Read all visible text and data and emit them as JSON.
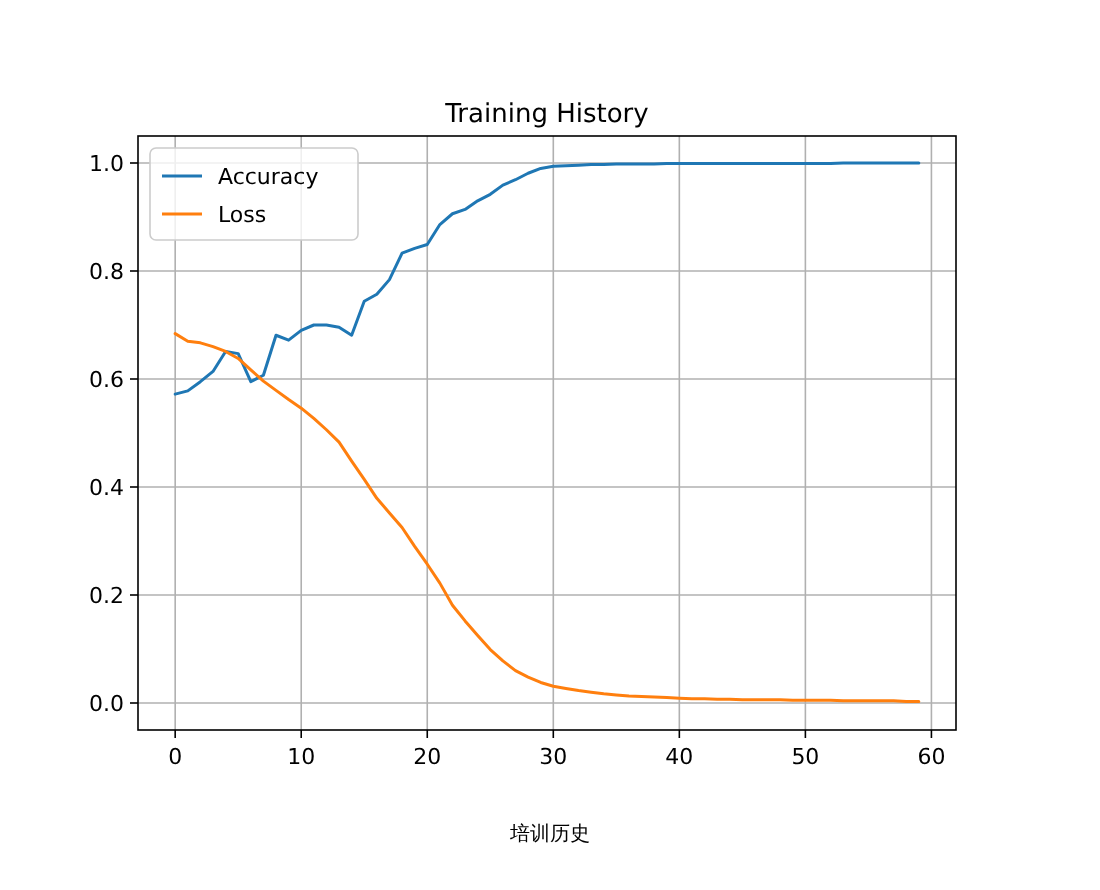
{
  "chart_data": {
    "type": "line",
    "title": "Training History",
    "x": [
      0,
      1,
      2,
      3,
      4,
      5,
      6,
      7,
      8,
      9,
      10,
      11,
      12,
      13,
      14,
      15,
      16,
      17,
      18,
      19,
      20,
      21,
      22,
      23,
      24,
      25,
      26,
      27,
      28,
      29,
      30,
      31,
      32,
      33,
      34,
      35,
      36,
      37,
      38,
      39,
      40,
      41,
      42,
      43,
      44,
      45,
      46,
      47,
      48,
      49,
      50,
      51,
      52,
      53,
      54,
      55,
      56,
      57,
      58,
      59
    ],
    "series": [
      {
        "name": "Accuracy",
        "color": "#1f77b4",
        "values": [
          0.572,
          0.578,
          0.595,
          0.614,
          0.651,
          0.647,
          0.595,
          0.607,
          0.681,
          0.672,
          0.69,
          0.7,
          0.7,
          0.696,
          0.681,
          0.744,
          0.757,
          0.784,
          0.833,
          0.842,
          0.849,
          0.886,
          0.906,
          0.914,
          0.93,
          0.942,
          0.959,
          0.969,
          0.981,
          0.99,
          0.994,
          0.995,
          0.996,
          0.997,
          0.997,
          0.998,
          0.998,
          0.998,
          0.998,
          0.999,
          0.999,
          0.999,
          0.999,
          0.999,
          0.999,
          0.999,
          0.999,
          0.999,
          0.999,
          0.999,
          0.999,
          0.999,
          0.999,
          1.0,
          1.0,
          1.0,
          1.0,
          1.0,
          1.0,
          1.0
        ]
      },
      {
        "name": "Loss",
        "color": "#ff7f0e",
        "values": [
          0.684,
          0.67,
          0.667,
          0.66,
          0.651,
          0.638,
          0.617,
          0.596,
          0.579,
          0.562,
          0.546,
          0.527,
          0.506,
          0.483,
          0.448,
          0.414,
          0.379,
          0.352,
          0.325,
          0.29,
          0.257,
          0.222,
          0.181,
          0.152,
          0.125,
          0.099,
          0.078,
          0.06,
          0.048,
          0.038,
          0.031,
          0.027,
          0.023,
          0.02,
          0.017,
          0.015,
          0.013,
          0.012,
          0.011,
          0.01,
          0.009,
          0.008,
          0.008,
          0.007,
          0.007,
          0.006,
          0.006,
          0.006,
          0.006,
          0.005,
          0.005,
          0.005,
          0.005,
          0.004,
          0.004,
          0.004,
          0.004,
          0.004,
          0.003,
          0.003
        ]
      }
    ],
    "xlim": [
      -2.95,
      61.95
    ],
    "ylim": [
      -0.05,
      1.05
    ],
    "xticks": [
      0,
      10,
      20,
      30,
      40,
      50,
      60
    ],
    "yticks": [
      {
        "value": 0,
        "label": "0.0"
      },
      {
        "value": 0.2,
        "label": "0.2"
      },
      {
        "value": 0.4,
        "label": "0.4"
      },
      {
        "value": 0.6,
        "label": "0.6"
      },
      {
        "value": 0.8,
        "label": "0.8"
      },
      {
        "value": 1,
        "label": "1.0"
      }
    ],
    "grid": true,
    "legend": "top left",
    "annotations": [
      "培训历史"
    ]
  }
}
